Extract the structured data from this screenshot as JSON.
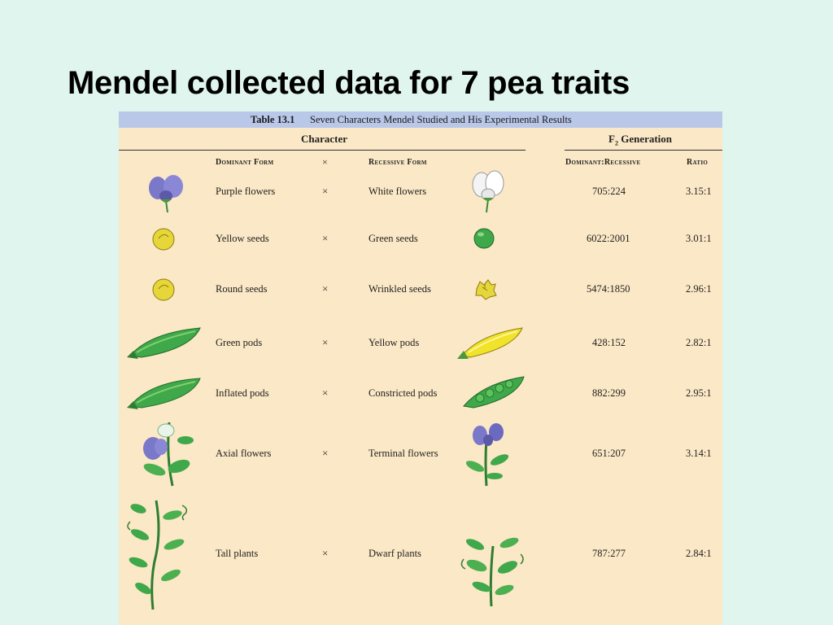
{
  "slide": {
    "title": "Mendel collected data for 7 pea traits"
  },
  "table": {
    "number": "Table 13.1",
    "caption": "Seven Characters Mendel Studied and His Experimental Results",
    "group_character": "Character",
    "group_f2": "F2 Generation",
    "col_dominant": "Dominant Form",
    "col_cross": "×",
    "col_recessive": "Recessive Form",
    "col_ratio_counts": "Dominant:Recessive",
    "col_ratio": "Ratio",
    "rows": [
      {
        "dominant": "Purple flowers",
        "cross": "×",
        "recessive": "White flowers",
        "counts": "705:224",
        "ratio": "3.15:1"
      },
      {
        "dominant": "Yellow seeds",
        "cross": "×",
        "recessive": "Green seeds",
        "counts": "6022:2001",
        "ratio": "3.01:1"
      },
      {
        "dominant": "Round seeds",
        "cross": "×",
        "recessive": "Wrinkled seeds",
        "counts": "5474:1850",
        "ratio": "2.96:1"
      },
      {
        "dominant": "Green pods",
        "cross": "×",
        "recessive": "Yellow pods",
        "counts": "428:152",
        "ratio": "2.82:1"
      },
      {
        "dominant": "Inflated pods",
        "cross": "×",
        "recessive": "Constricted pods",
        "counts": "882:299",
        "ratio": "2.95:1"
      },
      {
        "dominant": "Axial flowers",
        "cross": "×",
        "recessive": "Terminal flowers",
        "counts": "651:207",
        "ratio": "3.14:1"
      },
      {
        "dominant": "Tall plants",
        "cross": "×",
        "recessive": "Dwarf plants",
        "counts": "787:277",
        "ratio": "2.84:1"
      }
    ]
  },
  "icons": {
    "row1_dom": "purple-flower-icon",
    "row1_rec": "white-flower-icon",
    "row2_dom": "yellow-seed-icon",
    "row2_rec": "green-seed-icon",
    "row3_dom": "round-seed-icon",
    "row3_rec": "wrinkled-seed-icon",
    "row4_dom": "green-pod-icon",
    "row4_rec": "yellow-pod-icon",
    "row5_dom": "inflated-pod-icon",
    "row5_rec": "constricted-pod-icon",
    "row6_dom": "axial-flower-icon",
    "row6_rec": "terminal-flower-icon",
    "row7_dom": "tall-plant-icon",
    "row7_rec": "dwarf-plant-icon"
  },
  "colors": {
    "background": "#dff5ee",
    "table_background": "#fbe8c6",
    "caption_bar": "#b9c7e8",
    "purple_flower": "#7a78c8",
    "yellow_seed": "#e6d63a",
    "green": "#3fa84a"
  }
}
